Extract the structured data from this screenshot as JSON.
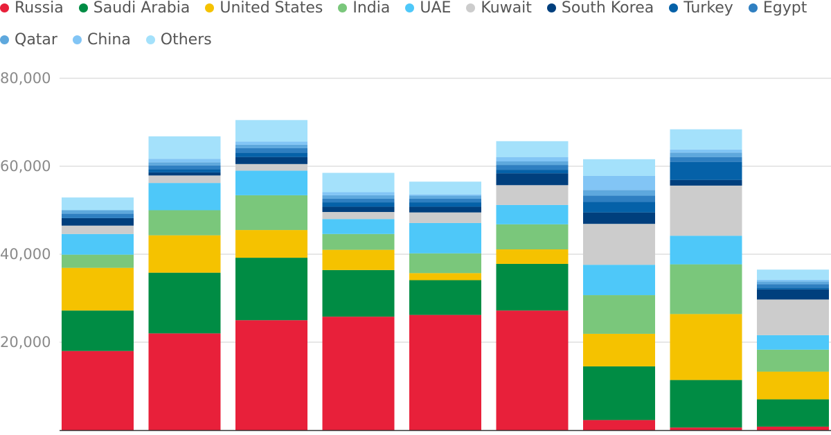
{
  "chart_data": {
    "type": "bar",
    "stacked": true,
    "title": "",
    "xlabel": "",
    "ylabel": "",
    "ylim": [
      0,
      80000
    ],
    "yticks": [
      {
        "value": 20000,
        "label": "20,000"
      },
      {
        "value": 40000,
        "label": "40,000"
      },
      {
        "value": 60000,
        "label": "60,000"
      },
      {
        "value": 80000,
        "label": "80,000"
      }
    ],
    "grid": true,
    "legend_position": "top-left",
    "categories": [
      "",
      "",
      "",
      "",
      "",
      "",
      "",
      "",
      "",
      ""
    ],
    "series": [
      {
        "name": "Russia",
        "color": "#e8203a",
        "values": [
          18000,
          22000,
          25000,
          25800,
          26200,
          27200,
          2300,
          600,
          800,
          0
        ]
      },
      {
        "name": "Saudi Arabia",
        "color": "#008c44",
        "values": [
          9200,
          13800,
          14200,
          10600,
          7900,
          10600,
          12200,
          10800,
          6200,
          0
        ]
      },
      {
        "name": "United States",
        "color": "#f5c200",
        "values": [
          9700,
          8500,
          6300,
          4600,
          1600,
          3300,
          7400,
          15000,
          6300,
          0
        ]
      },
      {
        "name": "India",
        "color": "#7ac77b",
        "values": [
          3000,
          5700,
          7900,
          3600,
          4500,
          5700,
          8800,
          11300,
          5000,
          0
        ]
      },
      {
        "name": "UAE",
        "color": "#4ec8f9",
        "values": [
          4700,
          6200,
          5600,
          3400,
          6900,
          4400,
          6900,
          6500,
          3300,
          0
        ]
      },
      {
        "name": "Kuwait",
        "color": "#cccccc",
        "values": [
          1900,
          1700,
          1500,
          1600,
          2400,
          4500,
          9300,
          11400,
          8100,
          0
        ]
      },
      {
        "name": "South Korea",
        "color": "#003f7d",
        "values": [
          1700,
          700,
          1600,
          1200,
          1300,
          2700,
          2600,
          1300,
          2300,
          0
        ]
      },
      {
        "name": "Turkey",
        "color": "#0561a8",
        "values": [
          0,
          700,
          1000,
          1000,
          1000,
          800,
          2400,
          4100,
          400,
          0
        ]
      },
      {
        "name": "Egypt",
        "color": "#2f7fc1",
        "values": [
          1000,
          900,
          1000,
          800,
          800,
          1100,
          1400,
          1100,
          800,
          0
        ]
      },
      {
        "name": "Qatar",
        "color": "#5ea8dd",
        "values": [
          800,
          700,
          800,
          800,
          700,
          800,
          1300,
          1000,
          600,
          0
        ]
      },
      {
        "name": "China",
        "color": "#82c5f5",
        "values": [
          0,
          800,
          700,
          700,
          300,
          1000,
          3200,
          700,
          400,
          0
        ]
      },
      {
        "name": "Others",
        "color": "#a4e1fb",
        "values": [
          2900,
          5100,
          4900,
          4400,
          2900,
          3600,
          3800,
          4600,
          2300,
          0
        ]
      }
    ]
  }
}
